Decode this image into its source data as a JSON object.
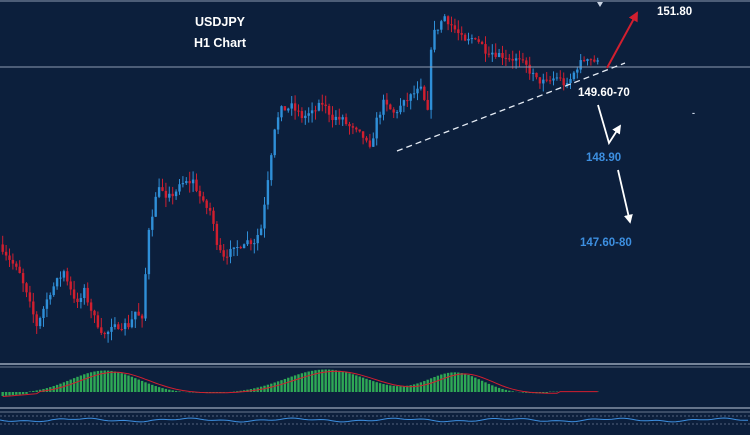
{
  "chart_data": {
    "type": "candlestick",
    "symbol": "USDJPY",
    "timeframe": "H1 Chart",
    "price_range": [
      146.9,
      152.2
    ],
    "colors": {
      "background": "#0c1f3c",
      "up": "#2f8fd8",
      "down": "#d01f2f",
      "target": "#3d8fe0",
      "hist": "#2ea855"
    },
    "annotations": {
      "level_up": "151.80",
      "level_mid": "149.60-70",
      "level_low1": "148.90",
      "level_low2": "147.60-80"
    },
    "close_path": [
      [
        0,
        148.6
      ],
      [
        5,
        148.2
      ],
      [
        10,
        147.45
      ],
      [
        14,
        147.95
      ],
      [
        18,
        148.25
      ],
      [
        20,
        148.0
      ],
      [
        22,
        147.75
      ],
      [
        24,
        147.95
      ],
      [
        27,
        147.55
      ],
      [
        30,
        147.3
      ],
      [
        34,
        147.45
      ],
      [
        37,
        147.45
      ],
      [
        39,
        147.65
      ],
      [
        41,
        147.5
      ],
      [
        43,
        148.9
      ],
      [
        46,
        149.55
      ],
      [
        48,
        149.3
      ],
      [
        50,
        149.4
      ],
      [
        53,
        149.55
      ],
      [
        56,
        149.6
      ],
      [
        59,
        149.25
      ],
      [
        61,
        149.15
      ],
      [
        63,
        148.7
      ],
      [
        65,
        148.5
      ],
      [
        68,
        148.55
      ],
      [
        71,
        148.7
      ],
      [
        74,
        148.7
      ],
      [
        76,
        148.9
      ],
      [
        78,
        149.65
      ],
      [
        80,
        150.4
      ],
      [
        82,
        150.65
      ],
      [
        85,
        150.7
      ],
      [
        88,
        150.55
      ],
      [
        91,
        150.6
      ],
      [
        94,
        150.75
      ],
      [
        97,
        150.55
      ],
      [
        100,
        150.5
      ],
      [
        103,
        150.35
      ],
      [
        106,
        150.25
      ],
      [
        108,
        150.05
      ],
      [
        110,
        150.5
      ],
      [
        112,
        150.75
      ],
      [
        115,
        150.6
      ],
      [
        118,
        150.75
      ],
      [
        121,
        150.9
      ],
      [
        123,
        150.95
      ],
      [
        125,
        150.6
      ],
      [
        126,
        151.6
      ],
      [
        127,
        151.8
      ],
      [
        130,
        152.05
      ],
      [
        133,
        151.85
      ],
      [
        136,
        151.65
      ],
      [
        139,
        151.75
      ],
      [
        142,
        151.55
      ],
      [
        145,
        151.5
      ],
      [
        148,
        151.45
      ],
      [
        151,
        151.4
      ],
      [
        154,
        151.3
      ],
      [
        157,
        151.1
      ],
      [
        160,
        151.05
      ],
      [
        163,
        151.15
      ],
      [
        166,
        151.0
      ],
      [
        169,
        151.3
      ],
      [
        172,
        151.45
      ],
      [
        175,
        151.35
      ]
    ]
  }
}
